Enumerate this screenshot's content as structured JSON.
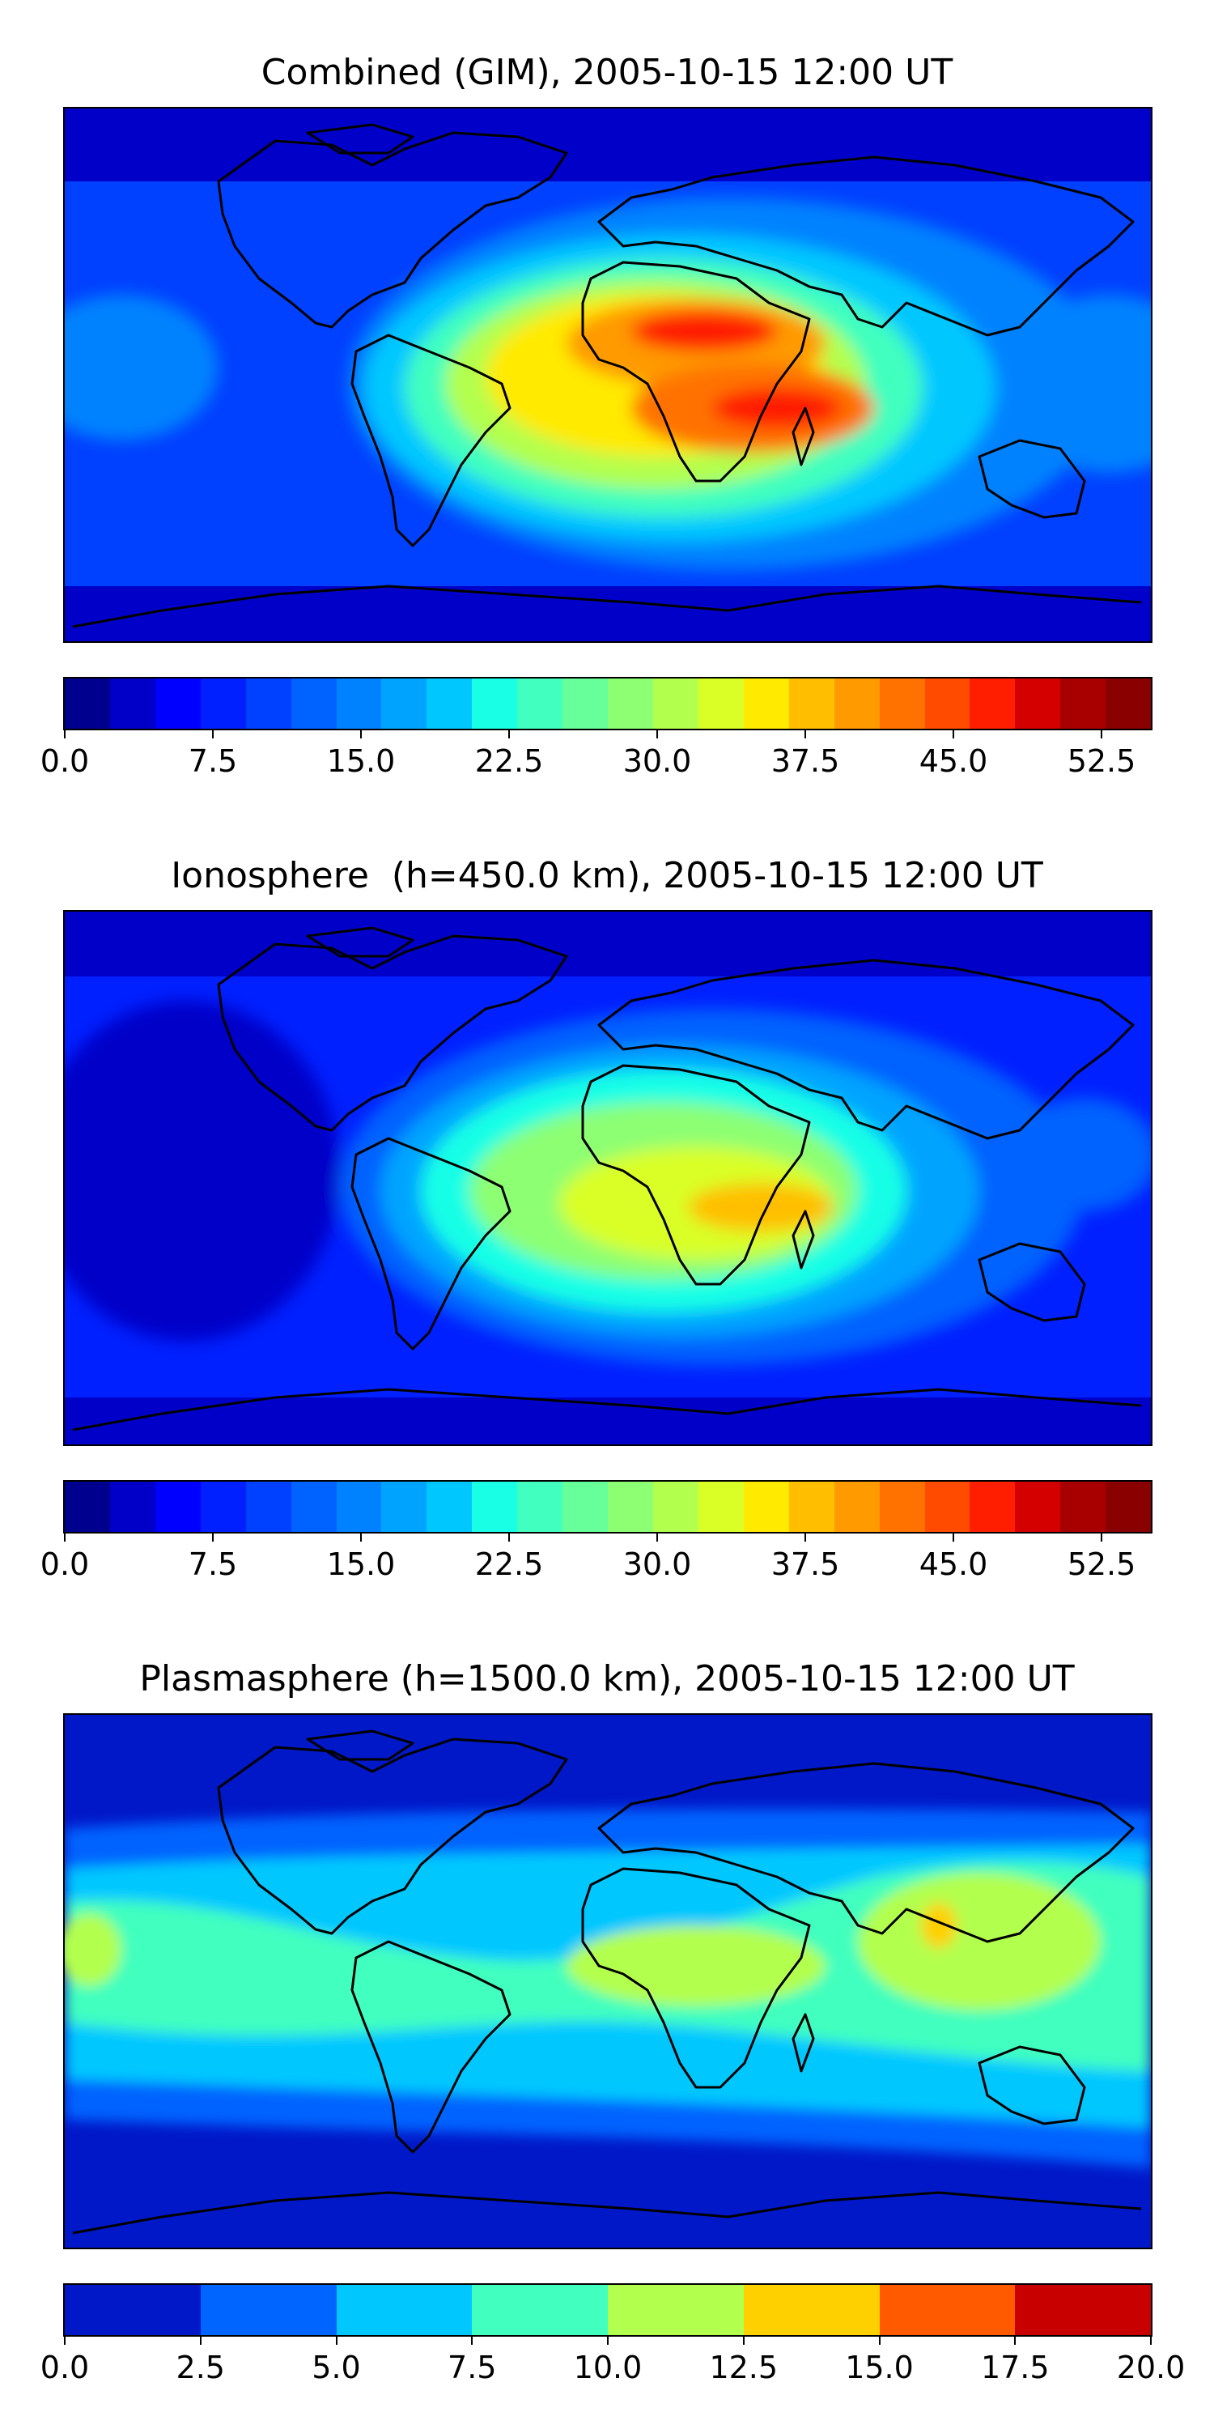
{
  "panels": [
    {
      "title": "Combined (GIM), 2005-10-15 12:00 UT",
      "colorbar": {
        "colors": [
          "#00008f",
          "#0000c8",
          "#0000ff",
          "#0020ff",
          "#0040ff",
          "#0062ff",
          "#0082ff",
          "#00a4ff",
          "#00c8ff",
          "#19ffe6",
          "#40ffbf",
          "#66ff99",
          "#8cff73",
          "#b3ff4d",
          "#d9ff26",
          "#ffea00",
          "#ffbf00",
          "#ff9a00",
          "#ff7200",
          "#ff4b00",
          "#ff1e00",
          "#d40000",
          "#a80000",
          "#8a0000"
        ],
        "ticks": [
          "0.0",
          "7.5",
          "15.0",
          "22.5",
          "30.0",
          "37.5",
          "45.0",
          "52.5"
        ],
        "range": [
          0,
          55
        ]
      },
      "map_palette": {
        "bg": "#0038e8",
        "high": "#ff3a00"
      }
    },
    {
      "title": "Ionosphere  (h=450.0 km), 2005-10-15 12:00 UT",
      "colorbar": {
        "colors": [
          "#00008f",
          "#0000c8",
          "#0000ff",
          "#0020ff",
          "#0040ff",
          "#0062ff",
          "#0082ff",
          "#00a4ff",
          "#00c8ff",
          "#19ffe6",
          "#40ffbf",
          "#66ff99",
          "#8cff73",
          "#b3ff4d",
          "#d9ff26",
          "#ffea00",
          "#ffbf00",
          "#ff9a00",
          "#ff7200",
          "#ff4b00",
          "#ff1e00",
          "#d40000",
          "#a80000",
          "#8a0000"
        ],
        "ticks": [
          "0.0",
          "7.5",
          "15.0",
          "22.5",
          "30.0",
          "37.5",
          "45.0",
          "52.5"
        ],
        "range": [
          0,
          55
        ]
      },
      "map_palette": {
        "bg": "#0020c8",
        "high": "#ffbf00"
      }
    },
    {
      "title": "Plasmasphere (h=1500.0 km), 2005-10-15 12:00 UT",
      "colorbar": {
        "colors": [
          "#0018c8",
          "#0064ff",
          "#00c8ff",
          "#40ffbf",
          "#b3ff4d",
          "#ffd000",
          "#ff5a00",
          "#c80000"
        ],
        "ticks": [
          "0.0",
          "2.5",
          "5.0",
          "7.5",
          "10.0",
          "12.5",
          "15.0",
          "17.5",
          "20.0"
        ],
        "range": [
          0,
          20
        ]
      },
      "map_palette": {
        "bg": "#0020c8",
        "band": "#00c8ff",
        "high": "#b3ff4d"
      }
    }
  ]
}
